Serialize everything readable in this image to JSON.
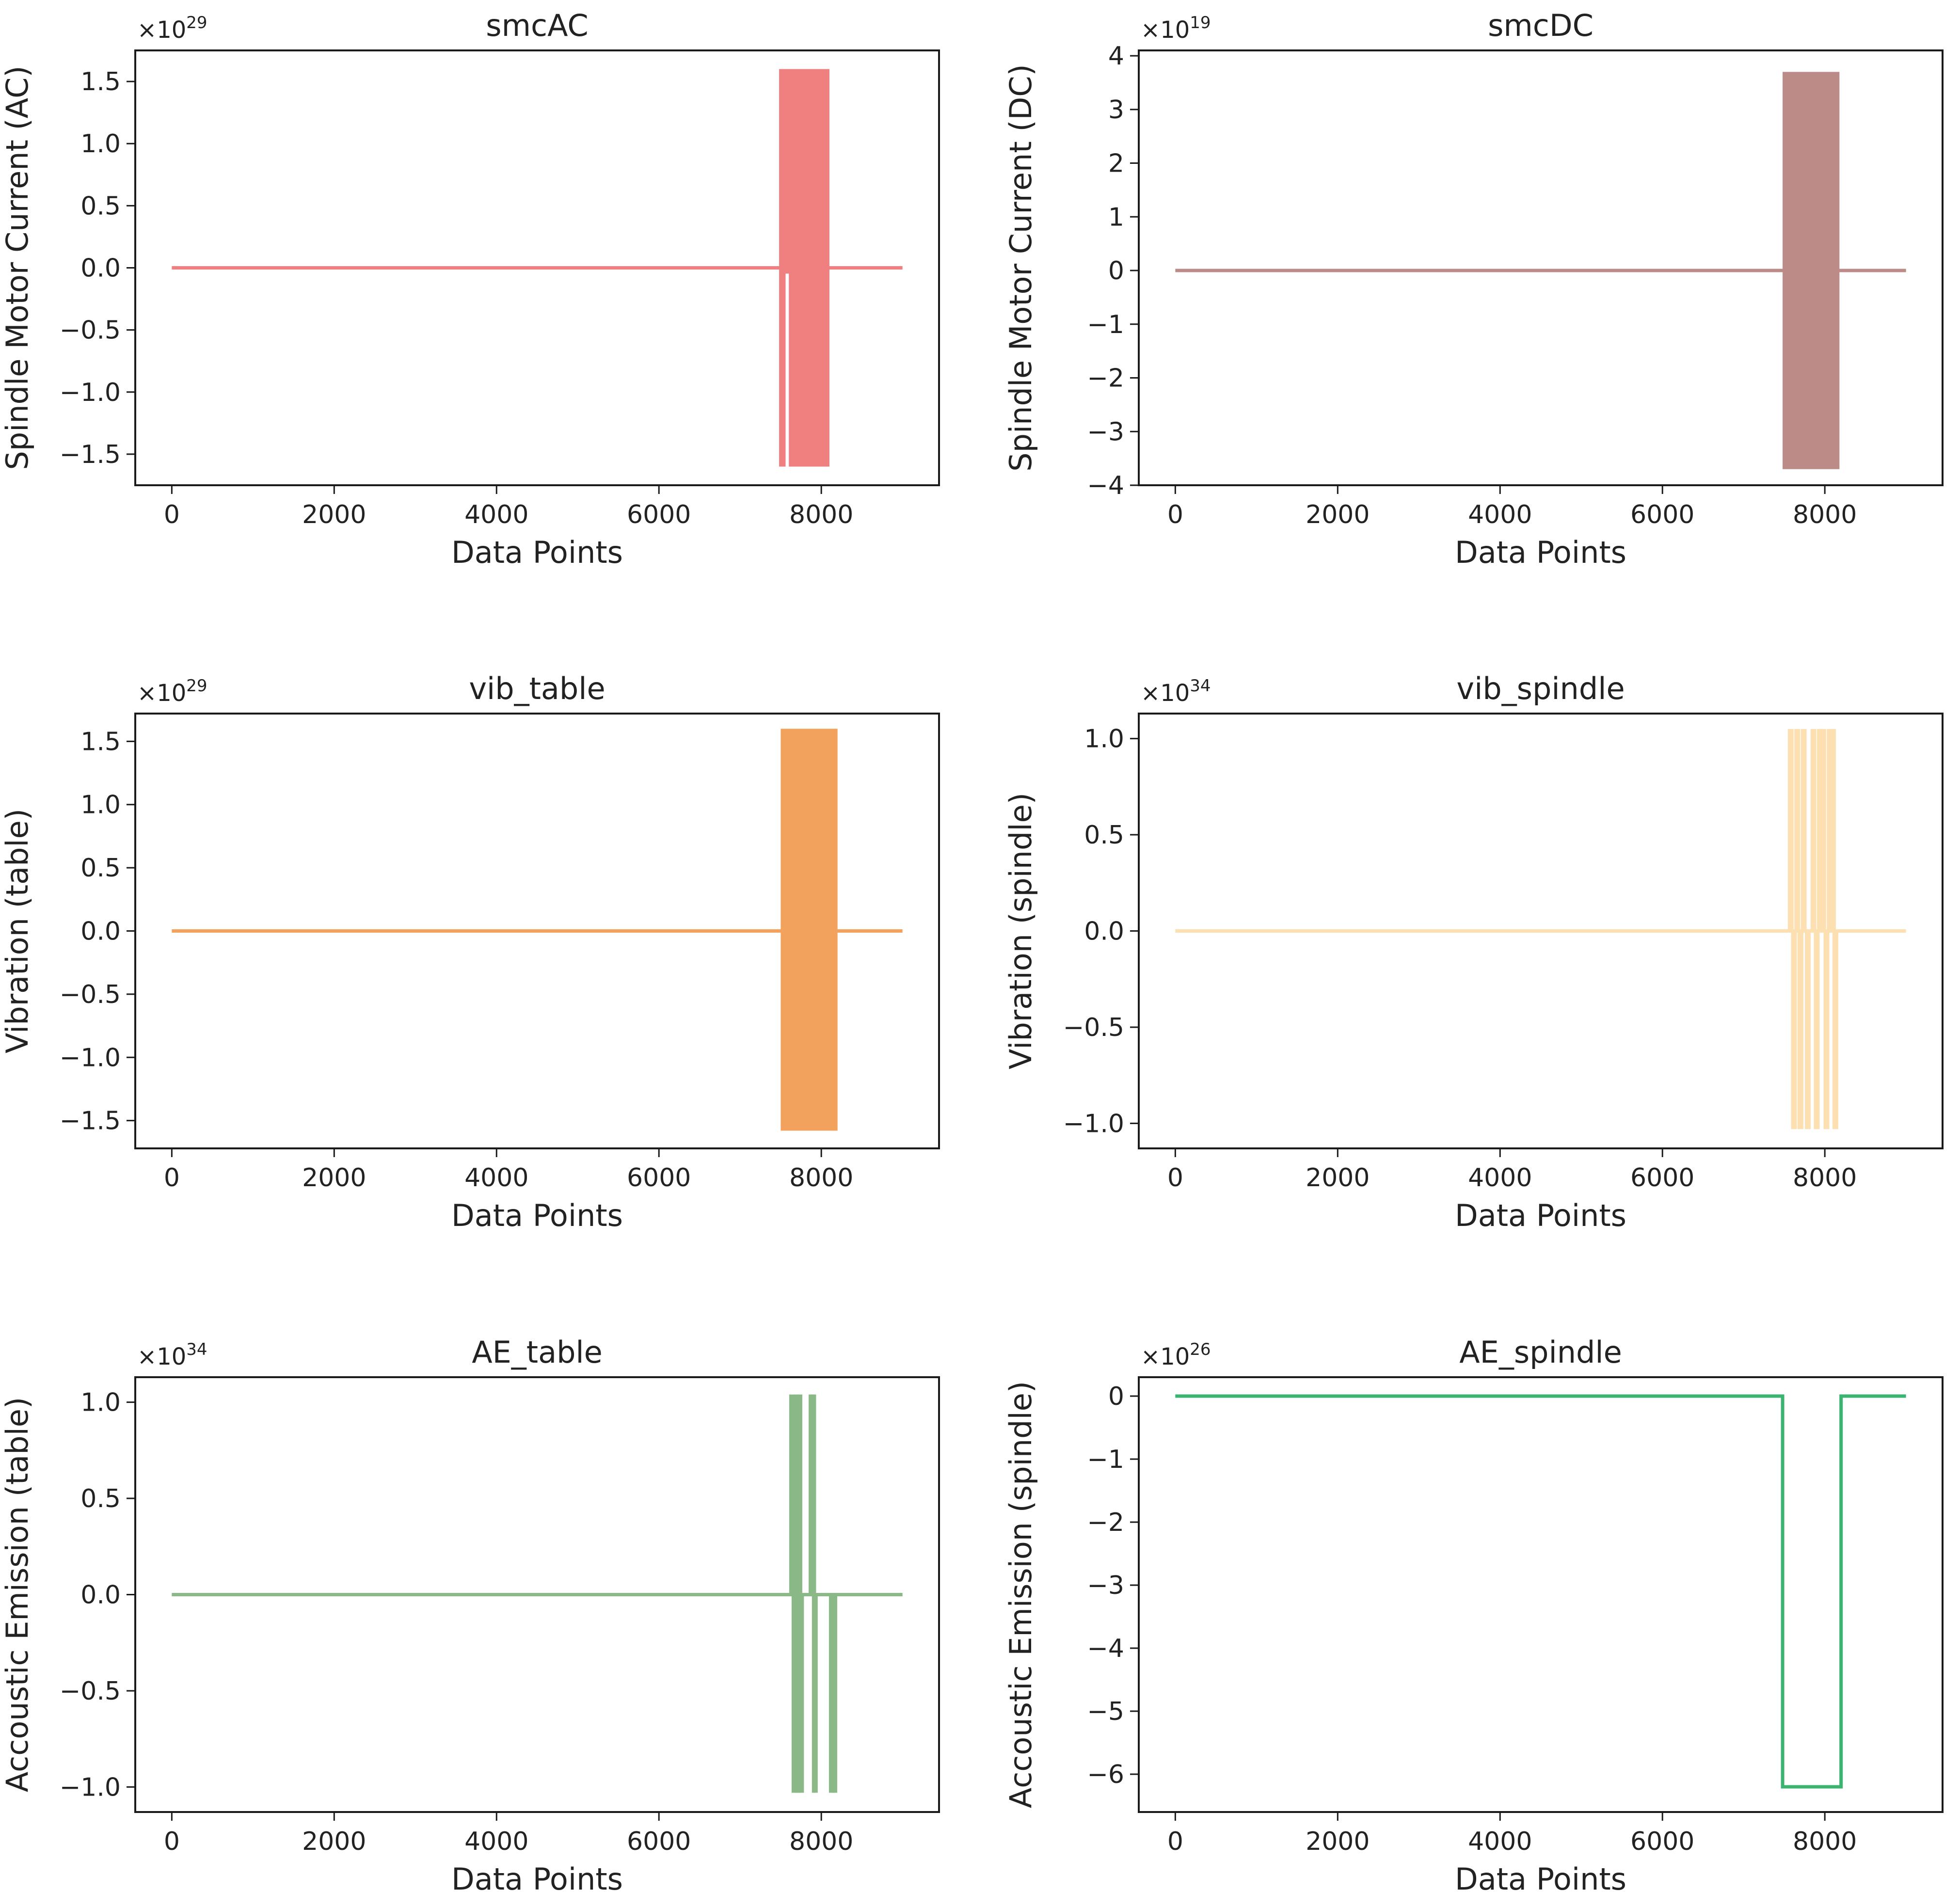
{
  "figure": {
    "panel_names": [
      "smcAC",
      "smcDC",
      "vib-table",
      "vib-spindle",
      "ae-table",
      "ae-spindle"
    ]
  },
  "chart_data": [
    {
      "type": "line",
      "title": "smcAC",
      "xlabel": "Data Points",
      "ylabel": "Spindle Motor Current (AC)",
      "exponent": "29",
      "color": "#f08080",
      "xlim": [
        -450,
        9450
      ],
      "ylim": [
        -1.75,
        1.75
      ],
      "xticks": [
        0,
        2000,
        4000,
        6000,
        8000
      ],
      "xtick_labels": [
        "0",
        "2000",
        "4000",
        "6000",
        "8000"
      ],
      "yticks": [
        -1.5,
        -1.0,
        -0.5,
        0.0,
        0.5,
        1.0,
        1.5
      ],
      "ytick_labels": [
        "−1.5",
        "−1.0",
        "−0.5",
        "0.0",
        "0.5",
        "1.0",
        "1.5"
      ],
      "baseline": {
        "x": [
          0,
          9000
        ],
        "y": 0
      },
      "bursts": [
        {
          "x0": 7480,
          "x1": 8100,
          "ymin": -1.6,
          "ymax": 1.6,
          "gaps": [
            [
              7560,
              7600
            ]
          ]
        }
      ],
      "spikes": [],
      "steps": []
    },
    {
      "type": "line",
      "title": "smcDC",
      "xlabel": "Data Points",
      "ylabel": "Spindle Motor Current (DC)",
      "exponent": "19",
      "color": "#bc8a87",
      "xlim": [
        -450,
        9450
      ],
      "ylim": [
        -4.0,
        4.1
      ],
      "xticks": [
        0,
        2000,
        4000,
        6000,
        8000
      ],
      "xtick_labels": [
        "0",
        "2000",
        "4000",
        "6000",
        "8000"
      ],
      "yticks": [
        -4,
        -3,
        -2,
        -1,
        0,
        1,
        2,
        3,
        4
      ],
      "ytick_labels": [
        "−4",
        "−3",
        "−2",
        "−1",
        "0",
        "1",
        "2",
        "3",
        "4"
      ],
      "baseline": {
        "x": [
          0,
          9000
        ],
        "y": 0
      },
      "bursts": [
        {
          "x0": 7480,
          "x1": 8180,
          "ymin": -3.7,
          "ymax": 3.7,
          "gaps": []
        }
      ],
      "spikes": [],
      "steps": []
    },
    {
      "type": "line",
      "title": "vib_table",
      "xlabel": "Data Points",
      "ylabel": "Vibration (table)",
      "exponent": "29",
      "color": "#f3a25e",
      "xlim": [
        -450,
        9450
      ],
      "ylim": [
        -1.72,
        1.72
      ],
      "xticks": [
        0,
        2000,
        4000,
        6000,
        8000
      ],
      "xtick_labels": [
        "0",
        "2000",
        "4000",
        "6000",
        "8000"
      ],
      "yticks": [
        -1.5,
        -1.0,
        -0.5,
        0.0,
        0.5,
        1.0,
        1.5
      ],
      "ytick_labels": [
        "−1.5",
        "−1.0",
        "−0.5",
        "0.0",
        "0.5",
        "1.0",
        "1.5"
      ],
      "baseline": {
        "x": [
          0,
          9000
        ],
        "y": 0
      },
      "bursts": [
        {
          "x0": 7500,
          "x1": 8200,
          "ymin": -1.58,
          "ymax": 1.6,
          "gaps": []
        }
      ],
      "spikes": [],
      "steps": []
    },
    {
      "type": "line",
      "title": "vib_spindle",
      "xlabel": "Data Points",
      "ylabel": "Vibration (spindle)",
      "exponent": "34",
      "color": "#fde0b2",
      "xlim": [
        -450,
        9450
      ],
      "ylim": [
        -1.13,
        1.13
      ],
      "xticks": [
        0,
        2000,
        4000,
        6000,
        8000
      ],
      "xtick_labels": [
        "0",
        "2000",
        "4000",
        "6000",
        "8000"
      ],
      "yticks": [
        -1.0,
        -0.5,
        0.0,
        0.5,
        1.0
      ],
      "ytick_labels": [
        "−1.0",
        "−0.5",
        "0.0",
        "0.5",
        "1.0"
      ],
      "baseline": {
        "x": [
          0,
          9000
        ],
        "y": 0
      },
      "bursts": [],
      "spikes": [
        {
          "x": 7580,
          "y": 1.05
        },
        {
          "x": 7620,
          "y": -1.03
        },
        {
          "x": 7660,
          "y": 1.05
        },
        {
          "x": 7700,
          "y": -1.03
        },
        {
          "x": 7740,
          "y": 1.05
        },
        {
          "x": 7790,
          "y": -1.03
        },
        {
          "x": 7860,
          "y": 1.05
        },
        {
          "x": 7900,
          "y": -1.03
        },
        {
          "x": 7940,
          "y": 1.05
        },
        {
          "x": 7980,
          "y": 1.05
        },
        {
          "x": 8020,
          "y": -1.03
        },
        {
          "x": 8060,
          "y": 1.05
        },
        {
          "x": 8100,
          "y": 1.05
        },
        {
          "x": 8130,
          "y": -1.03
        }
      ],
      "steps": []
    },
    {
      "type": "line",
      "title": "AE_table",
      "xlabel": "Data Points",
      "ylabel": "Accoustic Emission (table)",
      "exponent": "34",
      "color": "#8ab887",
      "xlim": [
        -450,
        9450
      ],
      "ylim": [
        -1.13,
        1.13
      ],
      "xticks": [
        0,
        2000,
        4000,
        6000,
        8000
      ],
      "xtick_labels": [
        "0",
        "2000",
        "4000",
        "6000",
        "8000"
      ],
      "yticks": [
        -1.0,
        -0.5,
        0.0,
        0.5,
        1.0
      ],
      "ytick_labels": [
        "−1.0",
        "−0.5",
        "0.0",
        "0.5",
        "1.0"
      ],
      "baseline": {
        "x": [
          0,
          9000
        ],
        "y": 0
      },
      "bursts": [],
      "spikes": [
        {
          "x": 7640,
          "y": 1.04
        },
        {
          "x": 7670,
          "y": -1.03
        },
        {
          "x": 7690,
          "y": 1.04
        },
        {
          "x": 7710,
          "y": -1.03
        },
        {
          "x": 7730,
          "y": 1.04
        },
        {
          "x": 7750,
          "y": -1.03
        },
        {
          "x": 7880,
          "y": 1.04
        },
        {
          "x": 7900,
          "y": 1.04
        },
        {
          "x": 7920,
          "y": -1.03
        },
        {
          "x": 8130,
          "y": -1.03
        },
        {
          "x": 8160,
          "y": -1.03
        }
      ],
      "steps": []
    },
    {
      "type": "line",
      "title": "AE_spindle",
      "xlabel": "Data Points",
      "ylabel": "Accoustic Emission (spindle)",
      "exponent": "26",
      "color": "#3cb371",
      "xlim": [
        -450,
        9450
      ],
      "ylim": [
        -6.6,
        0.3
      ],
      "xticks": [
        0,
        2000,
        4000,
        6000,
        8000
      ],
      "xtick_labels": [
        "0",
        "2000",
        "4000",
        "6000",
        "8000"
      ],
      "yticks": [
        -6,
        -5,
        -4,
        -3,
        -2,
        -1,
        0
      ],
      "ytick_labels": [
        "−6",
        "−5",
        "−4",
        "−3",
        "−2",
        "−1",
        "0"
      ],
      "baseline": null,
      "bursts": [],
      "spikes": [],
      "steps": [
        {
          "x": [
            0,
            7480,
            7480,
            8200,
            8200,
            9000
          ],
          "y": [
            0,
            0,
            -6.2,
            -6.2,
            0,
            0
          ]
        }
      ]
    }
  ]
}
